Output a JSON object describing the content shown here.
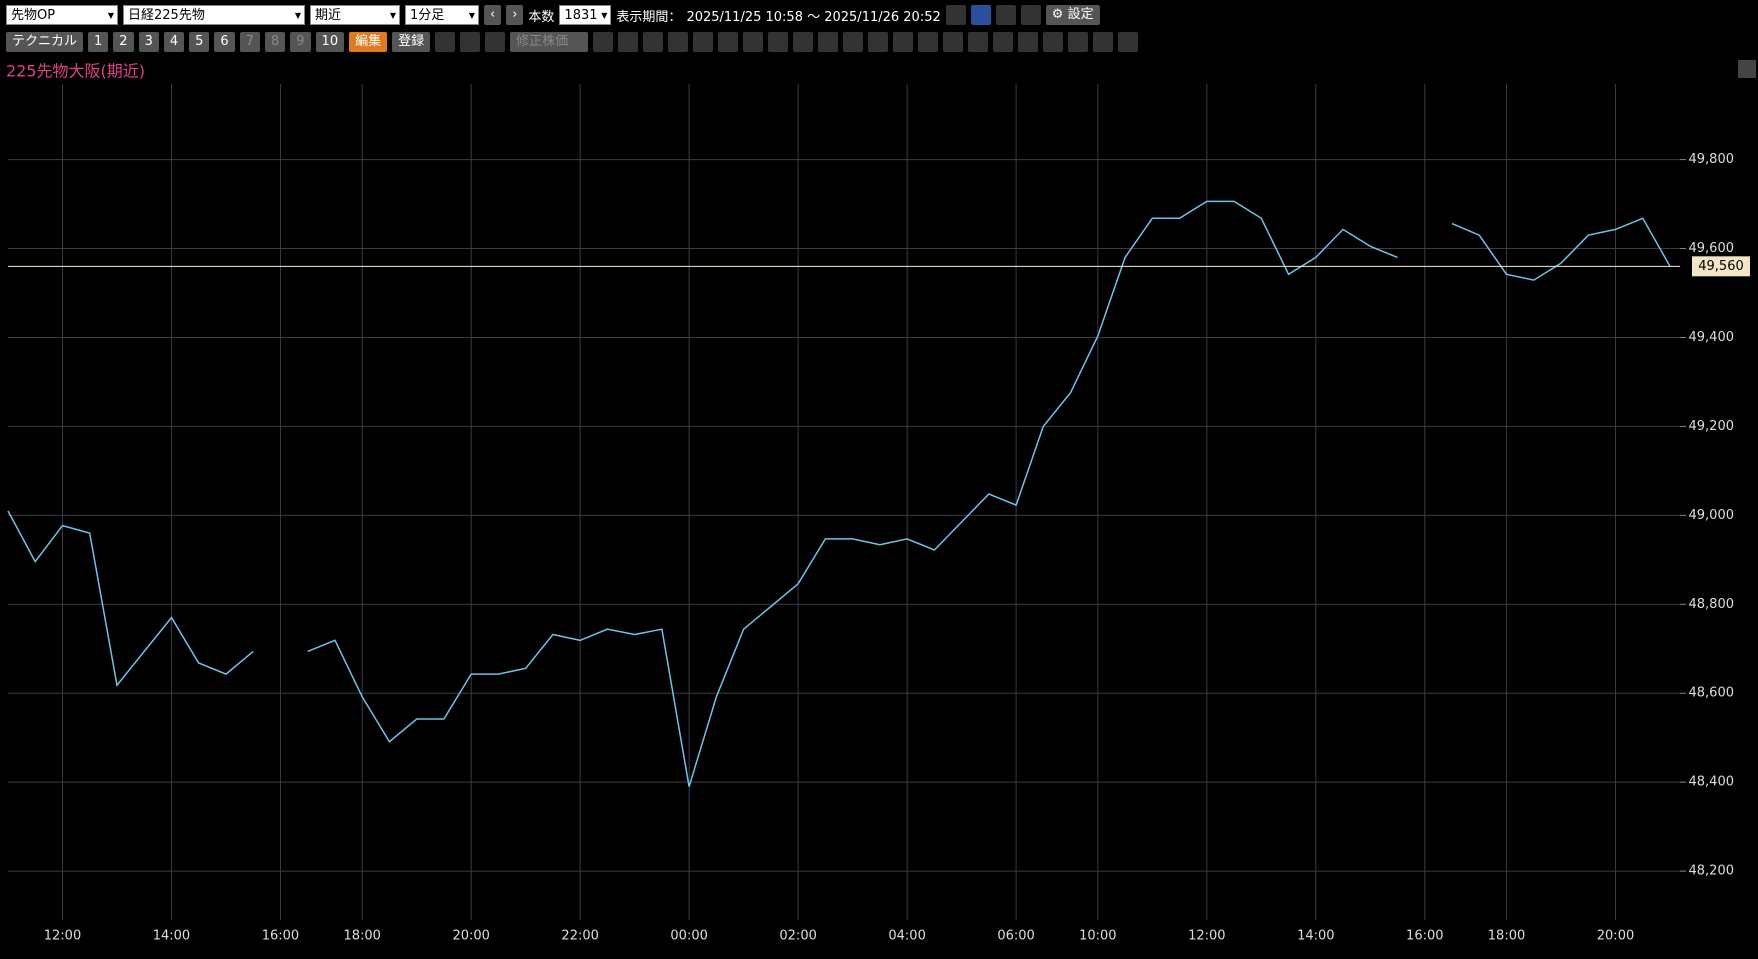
{
  "toolbar": {
    "market": "先物OP",
    "symbol": "日経225先物",
    "contract": "期近",
    "interval": "1分足",
    "bars_label": "本数",
    "bars": "1831",
    "period_label": "表示期間：",
    "period": "2025/11/25 10:58 ～ 2025/11/26 20:52",
    "settings": "設定",
    "technical": "テクニカル",
    "slots": [
      "1",
      "2",
      "3",
      "4",
      "5",
      "6",
      "7",
      "8",
      "9",
      "10"
    ],
    "edit": "編集",
    "register": "登録",
    "adjusted": "修正株価"
  },
  "chart_data": {
    "type": "line",
    "title": "225先物大阪(期近)",
    "color": "#6cc4e8",
    "grid": true,
    "categories": [
      null,
      null,
      "12:00",
      null,
      null,
      null,
      "14:00",
      null,
      null,
      null,
      "16:00",
      null,
      null,
      "18:00",
      null,
      null,
      null,
      "20:00",
      null,
      null,
      null,
      "22:00",
      null,
      null,
      null,
      "00:00",
      null,
      null,
      null,
      "02:00",
      null,
      null,
      null,
      "04:00",
      null,
      null,
      null,
      "06:00",
      null,
      null,
      "10:00",
      null,
      null,
      null,
      "12:00",
      null,
      null,
      null,
      "14:00",
      null,
      null,
      null,
      "16:00",
      null,
      null,
      "18:00",
      null,
      null,
      null,
      "20:00",
      null,
      null
    ],
    "values": [
      49010,
      48896,
      48977,
      48960,
      48618,
      48694,
      48770,
      48668,
      48643,
      48694,
      null,
      48694,
      48719,
      48592,
      48491,
      48542,
      48542,
      48643,
      48643,
      48656,
      48732,
      48719,
      48744,
      48732,
      48744,
      48390,
      48592,
      48744,
      48795,
      48846,
      48947,
      48947,
      48934,
      48947,
      48922,
      48985,
      49048,
      49023,
      49200,
      49276,
      49403,
      49580,
      49668,
      49668,
      49706,
      49706,
      49668,
      49542,
      49580,
      49643,
      49605,
      49580,
      null,
      49656,
      49630,
      49542,
      49529,
      49567,
      49630,
      49643,
      49668,
      49560
    ],
    "ylim": [
      48090,
      49970
    ],
    "yticks": [
      {
        "value": 48200,
        "label": "48,200"
      },
      {
        "value": 48400,
        "label": "48,400"
      },
      {
        "value": 48600,
        "label": "48,600"
      },
      {
        "value": 48800,
        "label": "48,800"
      },
      {
        "value": 49000,
        "label": "49,000"
      },
      {
        "value": 49200,
        "label": "49,200"
      },
      {
        "value": 49400,
        "label": "49,400"
      },
      {
        "value": 49600,
        "label": "49,600"
      },
      {
        "value": 49800,
        "label": "49,800"
      }
    ],
    "last_price": {
      "value": 49560,
      "label": "49,560"
    }
  }
}
